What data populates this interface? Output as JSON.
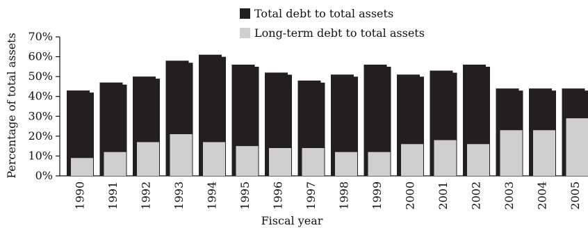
{
  "chart_data": {
    "type": "bar",
    "categories": [
      "1990",
      "1991",
      "1992",
      "1993",
      "1994",
      "1995",
      "1996",
      "1997",
      "1998",
      "1999",
      "2000",
      "2001",
      "2002",
      "2003",
      "2004",
      "2005"
    ],
    "series": [
      {
        "name": "Total debt to total assets",
        "values": [
          43,
          47,
          50,
          58,
          61,
          56,
          52,
          48,
          51,
          56,
          51,
          53,
          56,
          44,
          44,
          44
        ],
        "color": "#231f20"
      },
      {
        "name": "Long-term debt to total assets",
        "values": [
          9,
          12,
          17,
          21,
          17,
          15,
          14,
          14,
          12,
          12,
          16,
          18,
          16,
          23,
          23,
          29
        ],
        "color": "#cfcfcf"
      }
    ],
    "xlabel": "Fiscal year",
    "ylabel": "Percentage of total assets",
    "ylim": [
      0,
      70
    ],
    "yticks": [
      "0%",
      "10%",
      "20%",
      "30%",
      "40%",
      "50%",
      "60%",
      "70%"
    ],
    "legend": "top-center",
    "grid": false
  }
}
